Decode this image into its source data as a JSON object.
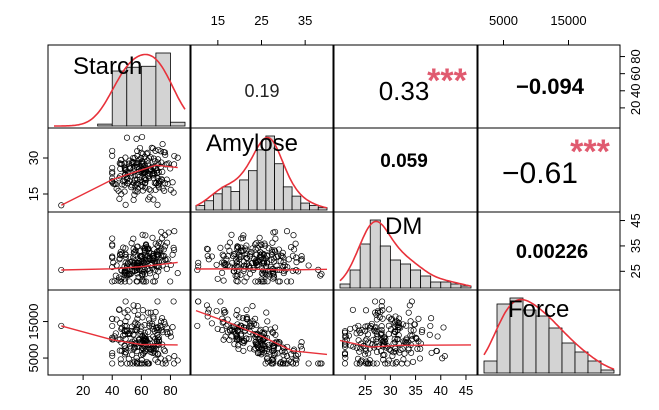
{
  "chart_data": {
    "type": "scatter-matrix",
    "variables": [
      "Starch",
      "Amylose",
      "DM",
      "Force"
    ],
    "axes": {
      "Starch": {
        "range": [
          0,
          90
        ],
        "ticks": [
          "20",
          "40",
          "60",
          "80"
        ]
      },
      "Amylose": {
        "range": [
          10,
          40
        ],
        "ticks": [
          "15",
          "25",
          "35"
        ],
        "left_ticks": [
          "15",
          "30"
        ]
      },
      "DM": {
        "range": [
          20,
          46
        ],
        "ticks": [
          "25",
          "30",
          "35",
          "40",
          "45"
        ],
        "right_ticks": [
          "25",
          "35",
          "45"
        ]
      },
      "Force": {
        "range": [
          2000,
          22000
        ],
        "ticks": [
          "5000",
          "15000"
        ],
        "left_ticks": [
          "5000",
          "15000"
        ]
      },
      "density": {
        "right_ticks": [
          "20",
          "40",
          "60",
          "80"
        ]
      }
    },
    "correlations": [
      {
        "pair": [
          "Starch",
          "Amylose"
        ],
        "text": "0.19",
        "stars": ""
      },
      {
        "pair": [
          "Starch",
          "DM"
        ],
        "text": "0.33",
        "stars": "***"
      },
      {
        "pair": [
          "Starch",
          "Force"
        ],
        "text": "−0.094",
        "stars": ""
      },
      {
        "pair": [
          "Amylose",
          "DM"
        ],
        "text": "0.059",
        "stars": ""
      },
      {
        "pair": [
          "Amylose",
          "Force"
        ],
        "text": "−0.61",
        "stars": "***"
      },
      {
        "pair": [
          "DM",
          "Force"
        ],
        "text": "0.00226",
        "stars": ""
      }
    ],
    "histograms": {
      "Starch": {
        "edges": [
          0,
          10,
          20,
          30,
          40,
          50,
          60,
          70,
          80,
          90
        ],
        "counts": [
          0,
          0,
          0,
          2,
          58,
          62,
          63,
          77,
          4
        ]
      },
      "Amylose": {
        "edges": [
          10,
          12,
          14,
          16,
          18,
          20,
          22,
          24,
          26,
          28,
          30,
          32,
          34,
          36,
          38,
          40
        ],
        "counts": [
          2,
          4,
          7,
          10,
          8,
          13,
          17,
          26,
          32,
          20,
          10,
          6,
          3,
          2,
          1
        ]
      },
      "DM": {
        "edges": [
          20,
          22,
          24,
          26,
          28,
          30,
          32,
          34,
          36,
          38,
          40,
          42,
          44,
          46
        ],
        "counts": [
          2,
          9,
          22,
          34,
          21,
          14,
          12,
          9,
          6,
          3,
          3,
          2,
          1
        ]
      },
      "Force": {
        "edges": [
          2000,
          4000,
          6000,
          8000,
          10000,
          12000,
          14000,
          16000,
          18000,
          20000,
          22000
        ],
        "counts": [
          8,
          46,
          50,
          42,
          38,
          30,
          20,
          14,
          8,
          2
        ]
      }
    },
    "density_curve_color": "#e8313a",
    "bar_fill": "#d3d3d3",
    "star_color": "#e05a6f",
    "smoother": {
      "Amylose_vs_Starch": [
        [
          5,
          10.3
        ],
        [
          40,
          21
        ],
        [
          55,
          24
        ],
        [
          70,
          27
        ],
        [
          85,
          26
        ]
      ],
      "DM_vs_Starch": [
        [
          5,
          25.5
        ],
        [
          40,
          26
        ],
        [
          60,
          26.8
        ],
        [
          85,
          28.5
        ]
      ],
      "DM_vs_Amylose": [
        [
          10,
          25.9
        ],
        [
          20,
          26
        ],
        [
          30,
          25.5
        ],
        [
          40,
          25.8
        ]
      ],
      "Force_vs_Starch": [
        [
          5,
          13800
        ],
        [
          40,
          10000
        ],
        [
          60,
          8700
        ],
        [
          85,
          8600
        ]
      ],
      "Force_vs_Amylose": [
        [
          10,
          18000
        ],
        [
          18,
          14500
        ],
        [
          25,
          11000
        ],
        [
          32,
          7000
        ],
        [
          40,
          6000
        ]
      ],
      "Force_vs_DM": [
        [
          20,
          9800
        ],
        [
          26,
          8000
        ],
        [
          32,
          8500
        ],
        [
          46,
          8600
        ]
      ]
    }
  }
}
